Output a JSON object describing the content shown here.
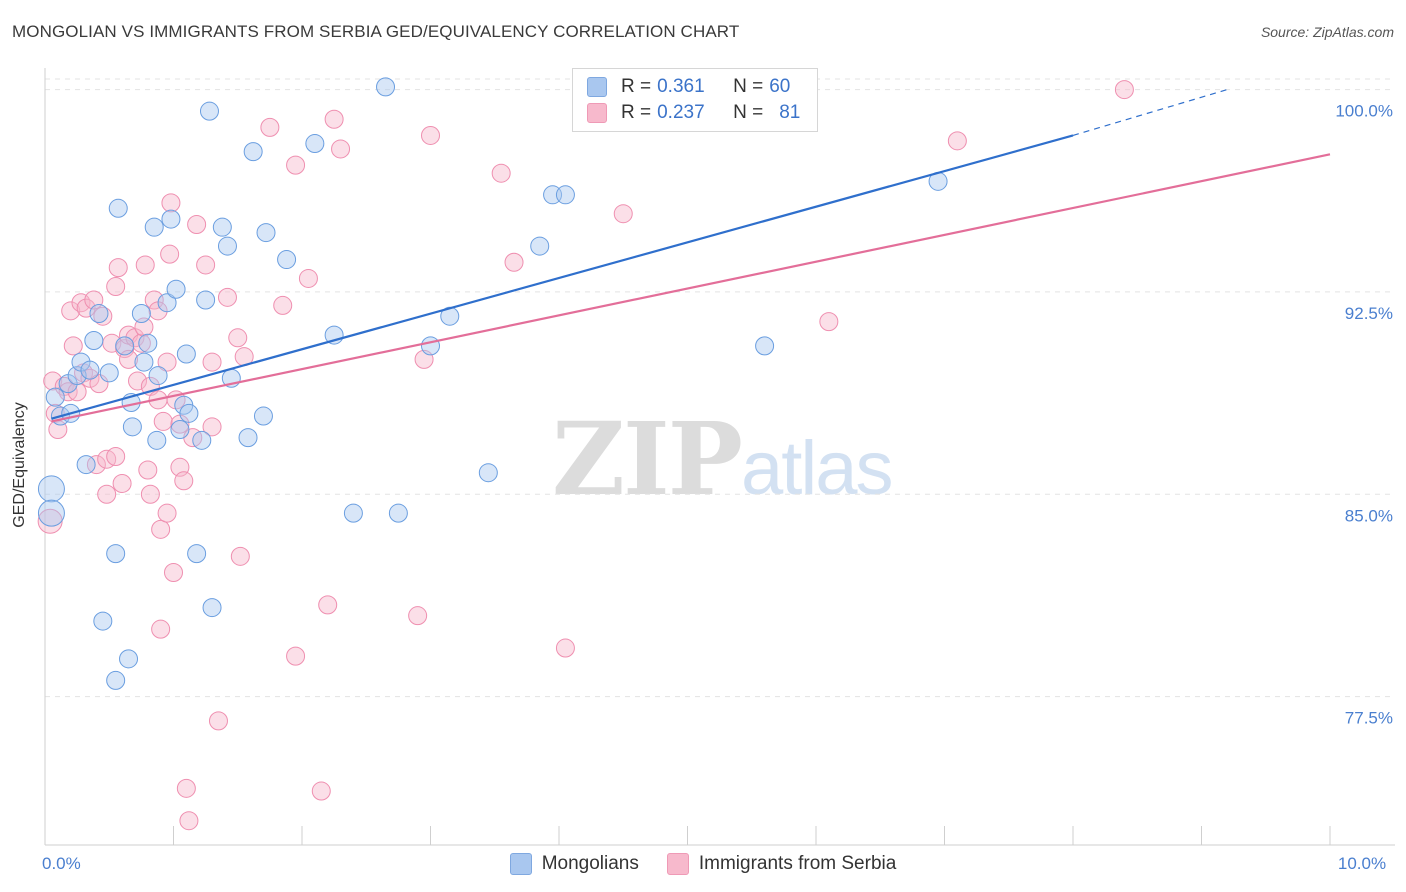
{
  "title": "MONGOLIAN VS IMMIGRANTS FROM SERBIA GED/EQUIVALENCY CORRELATION CHART",
  "source": "Source: ZipAtlas.com",
  "watermark": {
    "zip": "ZIP",
    "atlas": "atlas"
  },
  "legend": {
    "rows": [
      {
        "r_label": "R =",
        "r_value": "0.361",
        "n_label": "N =",
        "n_value": "60",
        "color": "#a9c7ef"
      },
      {
        "r_label": "R =",
        "r_value": "0.237",
        "n_label": "N =",
        "n_value": "81",
        "color": "#f7b9cc"
      }
    ]
  },
  "bottom_legend": [
    {
      "label": "Mongolians",
      "color": "#a9c7ef"
    },
    {
      "label": "Immigrants from Serbia",
      "color": "#f7b9cc"
    }
  ],
  "chart_data": {
    "type": "scatter",
    "title": "MONGOLIAN VS IMMIGRANTS FROM SERBIA GED/EQUIVALENCY CORRELATION CHART",
    "xlabel": "",
    "ylabel": "GED/Equivalency",
    "xlim": [
      0,
      10
    ],
    "ylim": [
      72.0,
      100.8
    ],
    "x_tick_labels": [
      {
        "value": 0,
        "label": "0.0%"
      },
      {
        "value": 10,
        "label": "10.0%"
      }
    ],
    "y_tick_labels": [
      {
        "value": 77.5,
        "label": "77.5%"
      },
      {
        "value": 85.0,
        "label": "85.0%"
      },
      {
        "value": 92.5,
        "label": "92.5%"
      },
      {
        "value": 100.0,
        "label": "100.0%"
      }
    ],
    "grid": true,
    "colors": {
      "mongolians": "#6a9ee0",
      "serbia": "#ef8fb0",
      "mongolians_line": "#2f6fcc",
      "serbia_line": "#e36e99",
      "tick_label": "#4a7fcf"
    },
    "series": [
      {
        "name": "Mongolians",
        "trend": {
          "x": [
            0.05,
            8.0,
            9.2
          ],
          "y": [
            87.8,
            98.3,
            100.0
          ],
          "solid_until": 8.0
        },
        "points": [
          [
            0.05,
            85.2
          ],
          [
            0.05,
            84.3
          ],
          [
            0.08,
            88.6
          ],
          [
            0.12,
            87.9
          ],
          [
            0.18,
            89.1
          ],
          [
            0.2,
            88.0
          ],
          [
            0.25,
            89.4
          ],
          [
            0.28,
            89.9
          ],
          [
            0.32,
            86.1
          ],
          [
            0.35,
            89.6
          ],
          [
            0.38,
            90.7
          ],
          [
            0.42,
            91.7
          ],
          [
            0.45,
            80.3
          ],
          [
            0.5,
            89.5
          ],
          [
            0.55,
            82.8
          ],
          [
            0.55,
            78.1
          ],
          [
            0.57,
            95.6
          ],
          [
            0.62,
            90.5
          ],
          [
            0.65,
            78.9
          ],
          [
            0.67,
            88.4
          ],
          [
            0.68,
            87.5
          ],
          [
            0.75,
            91.7
          ],
          [
            0.77,
            89.9
          ],
          [
            0.8,
            90.6
          ],
          [
            0.85,
            94.9
          ],
          [
            0.87,
            87.0
          ],
          [
            0.88,
            89.4
          ],
          [
            0.95,
            92.1
          ],
          [
            0.98,
            95.2
          ],
          [
            1.02,
            92.6
          ],
          [
            1.05,
            87.4
          ],
          [
            1.08,
            88.3
          ],
          [
            1.1,
            90.2
          ],
          [
            1.12,
            88.0
          ],
          [
            1.18,
            82.8
          ],
          [
            1.22,
            87.0
          ],
          [
            1.25,
            92.2
          ],
          [
            1.28,
            99.2
          ],
          [
            1.3,
            80.8
          ],
          [
            1.38,
            94.9
          ],
          [
            1.42,
            94.2
          ],
          [
            1.45,
            89.3
          ],
          [
            1.58,
            87.1
          ],
          [
            1.62,
            97.7
          ],
          [
            1.7,
            87.9
          ],
          [
            1.72,
            94.7
          ],
          [
            1.88,
            93.7
          ],
          [
            2.1,
            98.0
          ],
          [
            2.25,
            90.9
          ],
          [
            2.4,
            84.3
          ],
          [
            2.65,
            100.1
          ],
          [
            2.75,
            84.3
          ],
          [
            3.0,
            90.5
          ],
          [
            3.15,
            91.6
          ],
          [
            3.45,
            85.8
          ],
          [
            3.85,
            94.2
          ],
          [
            3.95,
            96.1
          ],
          [
            4.05,
            96.1
          ],
          [
            5.6,
            90.5
          ],
          [
            6.95,
            96.6
          ]
        ]
      },
      {
        "name": "Immigrants from Serbia",
        "trend": {
          "x": [
            0.05,
            10.0
          ],
          "y": [
            87.7,
            97.6
          ]
        },
        "points": [
          [
            0.04,
            84.0
          ],
          [
            0.06,
            89.2
          ],
          [
            0.08,
            88.0
          ],
          [
            0.1,
            87.4
          ],
          [
            0.15,
            89.0
          ],
          [
            0.18,
            88.8
          ],
          [
            0.2,
            91.8
          ],
          [
            0.22,
            90.5
          ],
          [
            0.25,
            88.8
          ],
          [
            0.28,
            92.1
          ],
          [
            0.3,
            89.5
          ],
          [
            0.32,
            91.9
          ],
          [
            0.35,
            89.3
          ],
          [
            0.38,
            92.2
          ],
          [
            0.4,
            86.1
          ],
          [
            0.42,
            89.1
          ],
          [
            0.45,
            91.6
          ],
          [
            0.48,
            86.3
          ],
          [
            0.48,
            85.0
          ],
          [
            0.52,
            90.6
          ],
          [
            0.55,
            92.7
          ],
          [
            0.55,
            86.4
          ],
          [
            0.57,
            93.4
          ],
          [
            0.6,
            85.4
          ],
          [
            0.62,
            90.4
          ],
          [
            0.65,
            90.9
          ],
          [
            0.65,
            90.0
          ],
          [
            0.7,
            90.8
          ],
          [
            0.72,
            89.2
          ],
          [
            0.75,
            90.6
          ],
          [
            0.77,
            91.2
          ],
          [
            0.78,
            93.5
          ],
          [
            0.8,
            85.9
          ],
          [
            0.82,
            85.0
          ],
          [
            0.82,
            89.0
          ],
          [
            0.85,
            92.2
          ],
          [
            0.88,
            91.8
          ],
          [
            0.88,
            88.5
          ],
          [
            0.9,
            83.7
          ],
          [
            0.9,
            80.0
          ],
          [
            0.92,
            87.7
          ],
          [
            0.95,
            84.3
          ],
          [
            0.95,
            89.9
          ],
          [
            0.97,
            93.9
          ],
          [
            0.98,
            95.8
          ],
          [
            1.0,
            82.1
          ],
          [
            1.02,
            88.5
          ],
          [
            1.05,
            86.0
          ],
          [
            1.05,
            87.6
          ],
          [
            1.08,
            85.5
          ],
          [
            1.1,
            74.1
          ],
          [
            1.12,
            72.9
          ],
          [
            1.15,
            87.1
          ],
          [
            1.18,
            95.0
          ],
          [
            1.25,
            93.5
          ],
          [
            1.3,
            87.5
          ],
          [
            1.3,
            89.9
          ],
          [
            1.35,
            76.6
          ],
          [
            1.42,
            92.3
          ],
          [
            1.5,
            90.8
          ],
          [
            1.52,
            82.7
          ],
          [
            1.55,
            90.1
          ],
          [
            1.75,
            98.6
          ],
          [
            1.85,
            92.0
          ],
          [
            1.95,
            97.2
          ],
          [
            1.95,
            79.0
          ],
          [
            2.05,
            93.0
          ],
          [
            2.15,
            74.0
          ],
          [
            2.2,
            80.9
          ],
          [
            2.25,
            98.9
          ],
          [
            2.3,
            97.8
          ],
          [
            2.9,
            80.5
          ],
          [
            2.95,
            90.0
          ],
          [
            3.0,
            98.3
          ],
          [
            3.55,
            96.9
          ],
          [
            3.65,
            93.6
          ],
          [
            4.05,
            79.3
          ],
          [
            4.5,
            95.4
          ],
          [
            6.1,
            91.4
          ],
          [
            7.1,
            98.1
          ],
          [
            8.4,
            100.0
          ]
        ]
      }
    ]
  }
}
